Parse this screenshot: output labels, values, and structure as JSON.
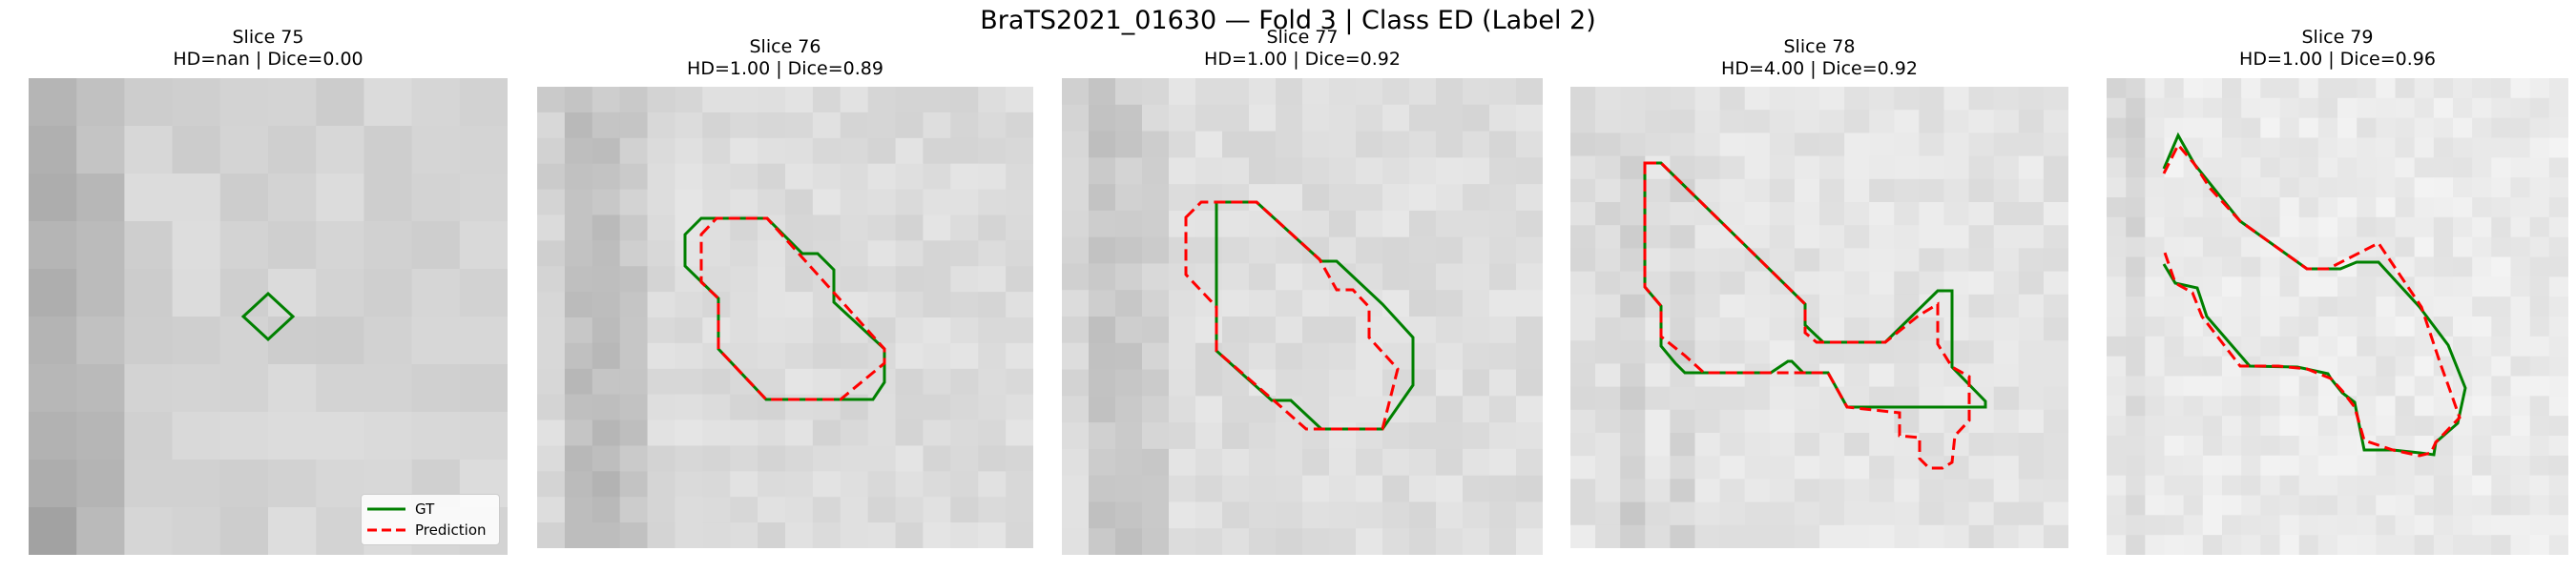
{
  "figure": {
    "title": "BraTS2021_01630 — Fold 3 | Class ED (Label 2)"
  },
  "legend": {
    "gt_label": "GT",
    "pred_label": "Prediction"
  },
  "colors": {
    "gt": "#008000",
    "pred": "#ff0000",
    "overlap": "#b32d00"
  },
  "panels": [
    {
      "slice": "Slice 75",
      "metrics": "HD=nan | Dice=0.00"
    },
    {
      "slice": "Slice 76",
      "metrics": "HD=1.00 | Dice=0.89"
    },
    {
      "slice": "Slice 77",
      "metrics": "HD=1.00 | Dice=0.92"
    },
    {
      "slice": "Slice 78",
      "metrics": "HD=4.00 | Dice=0.92"
    },
    {
      "slice": "Slice 79",
      "metrics": "HD=1.00 | Dice=0.96"
    }
  ]
}
